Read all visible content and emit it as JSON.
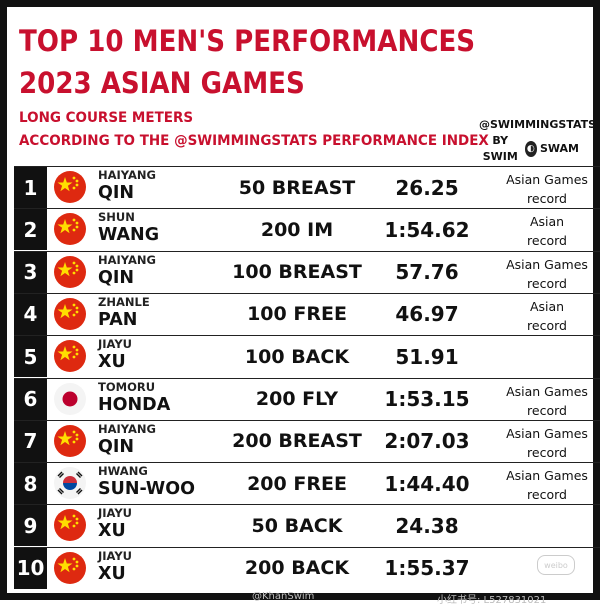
{
  "header": {
    "title_line1": "TOP 10 MEN'S PERFORMANCES",
    "title_line2": "2023 ASIAN GAMES",
    "subtitle_line1": "LONG COURSE METERS",
    "subtitle_line2": "ACCORDING TO THE @SWIMMINGSTATS PERFORMANCE INDEX"
  },
  "brand": {
    "handle": "@SWIMMINGSTATS",
    "by": "BY SWIM",
    "swam": "SWAM"
  },
  "colors": {
    "accent": "#c8102e",
    "rank_bg": "#111111"
  },
  "rows": [
    {
      "rank": "1",
      "flag": "china-flag",
      "first": "HAIYANG",
      "last": "QIN",
      "event": "50 BREAST",
      "time": "26.25",
      "note_line1": "Asian Games",
      "note_line2": "record"
    },
    {
      "rank": "2",
      "flag": "china-flag",
      "first": "SHUN",
      "last": "WANG",
      "event": "200 IM",
      "time": "1:54.62",
      "note_line1": "Asian",
      "note_line2": "record"
    },
    {
      "rank": "3",
      "flag": "china-flag",
      "first": "HAIYANG",
      "last": "QIN",
      "event": "100 BREAST",
      "time": "57.76",
      "note_line1": "Asian Games",
      "note_line2": "record"
    },
    {
      "rank": "4",
      "flag": "china-flag",
      "first": "ZHANLE",
      "last": "PAN",
      "event": "100 FREE",
      "time": "46.97",
      "note_line1": "Asian",
      "note_line2": "record"
    },
    {
      "rank": "5",
      "flag": "china-flag",
      "first": "JIAYU",
      "last": "XU",
      "event": "100 BACK",
      "time": "51.91",
      "note_line1": "",
      "note_line2": ""
    },
    {
      "rank": "6",
      "flag": "japan-flag",
      "first": "TOMORU",
      "last": "HONDA",
      "event": "200 FLY",
      "time": "1:53.15",
      "note_line1": "Asian Games",
      "note_line2": "record"
    },
    {
      "rank": "7",
      "flag": "china-flag",
      "first": "HAIYANG",
      "last": "QIN",
      "event": "200 BREAST",
      "time": "2:07.03",
      "note_line1": "Asian Games",
      "note_line2": "record"
    },
    {
      "rank": "8",
      "flag": "korea-flag",
      "first": "HWANG",
      "last": "SUN-WOO",
      "event": "200 FREE",
      "time": "1:44.40",
      "note_line1": "Asian Games",
      "note_line2": "record"
    },
    {
      "rank": "9",
      "flag": "china-flag",
      "first": "JIAYU",
      "last": "XU",
      "event": "50 BACK",
      "time": "24.38",
      "note_line1": "",
      "note_line2": ""
    },
    {
      "rank": "10",
      "flag": "china-flag",
      "first": "JIAYU",
      "last": "XU",
      "event": "200 BACK",
      "time": "1:55.37",
      "note_line1": "",
      "note_line2": ""
    }
  ],
  "watermark": {
    "text_left": "@KhanSwim",
    "text_right": "小红书号: L527831021",
    "logo": "weibo"
  }
}
